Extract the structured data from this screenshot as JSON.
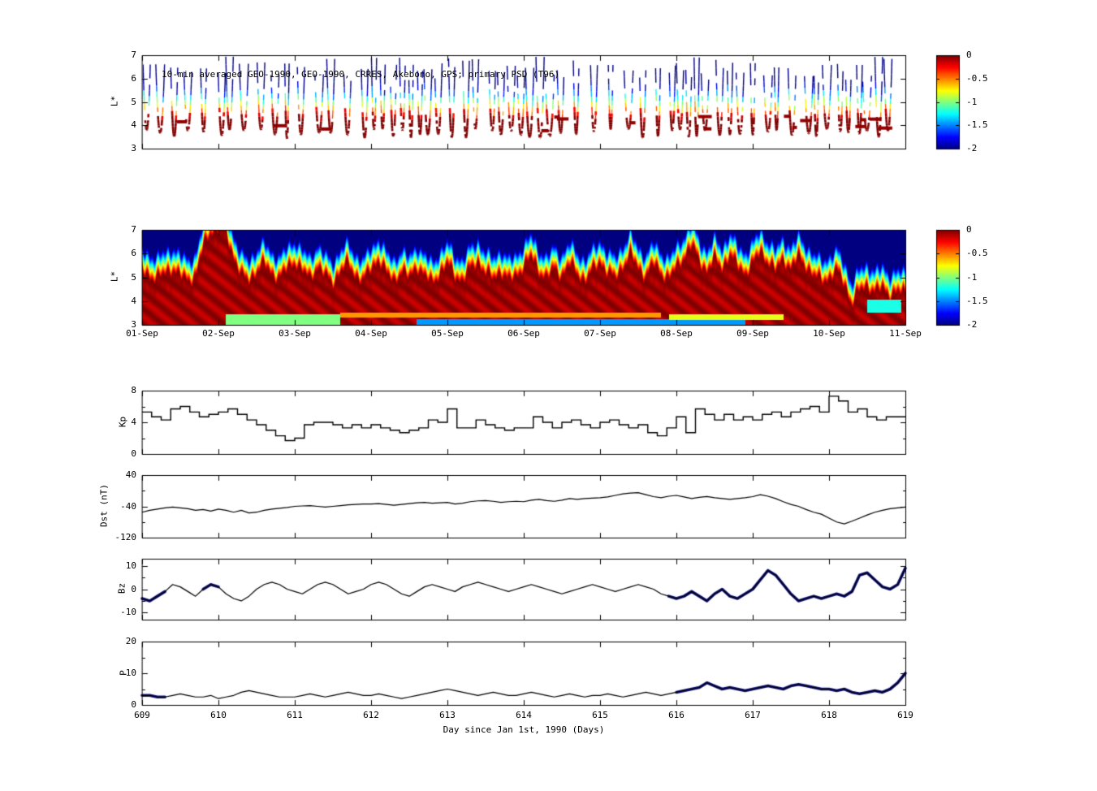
{
  "xaxis": {
    "label": "Day since Jan 1st, 1990 (Days)",
    "lim": [
      609,
      619
    ],
    "tick_labels": [
      "609",
      "610",
      "611",
      "612",
      "613",
      "614",
      "615",
      "616",
      "617",
      "618",
      "619"
    ]
  },
  "date_axis": {
    "tick_labels": [
      "01-Sep",
      "02-Sep",
      "03-Sep",
      "04-Sep",
      "05-Sep",
      "06-Sep",
      "07-Sep",
      "08-Sep",
      "09-Sep",
      "10-Sep",
      "11-Sep"
    ]
  },
  "colorbar": {
    "range": [
      -2,
      0
    ],
    "tick_values": [
      0,
      -0.5,
      -1,
      -1.5,
      -2
    ],
    "tick_labels": [
      "0",
      "-0.5",
      "-1",
      "-1.5",
      "-2"
    ]
  },
  "chart_data": [
    {
      "id": "psd-scatter",
      "type": "scatter",
      "title": "10-min averaged GEO-1990, GEO-1990, CRRES, Akebono, GPS; primary PSD (T96)",
      "ylabel": "L*",
      "ylim": [
        3,
        7
      ],
      "ytick_values": [
        7,
        6,
        5,
        4,
        3
      ],
      "ytick_labels": [
        "7",
        "6",
        "5",
        "4",
        "3"
      ],
      "value_range": [
        -2,
        0
      ],
      "orbit": {
        "period_days": 0.16,
        "span_days": 0.08,
        "lmin": 3.4,
        "lmax": 7.0
      },
      "seed": 42
    },
    {
      "id": "psd-map",
      "type": "heatmap",
      "ylabel": "L*",
      "ylim": [
        3,
        7
      ],
      "ytick_values": [
        7,
        6,
        5,
        4,
        3
      ],
      "ytick_labels": [
        "7",
        "6",
        "5",
        "4",
        "3"
      ],
      "value_range": [
        -2,
        0
      ],
      "x_start": 609,
      "x_step": 0.1,
      "red_top": [
        5.2,
        5.0,
        4.9,
        5.1,
        5.3,
        5.0,
        4.8,
        5.0,
        6.2,
        6.9,
        7.0,
        6.8,
        5.8,
        5.0,
        4.8,
        5.2,
        5.5,
        5.1,
        4.9,
        5.3,
        5.6,
        5.2,
        4.9,
        5.4,
        5.0,
        4.7,
        5.2,
        5.5,
        5.0,
        4.8,
        5.3,
        5.7,
        5.1,
        4.8,
        5.2,
        4.9,
        5.4,
        5.0,
        4.7,
        5.1,
        5.5,
        5.0,
        4.8,
        5.3,
        5.6,
        5.1,
        4.9,
        5.2,
        4.8,
        5.0,
        5.4,
        5.8,
        5.2,
        4.9,
        5.3,
        5.0,
        5.5,
        5.1,
        4.8,
        5.2,
        5.6,
        5.1,
        4.9,
        5.4,
        5.9,
        5.3,
        5.0,
        5.5,
        5.1,
        4.9,
        5.3,
        5.8,
        6.3,
        5.6,
        5.2,
        5.7,
        5.3,
        5.9,
        5.4,
        5.1,
        5.5,
        6.0,
        5.6,
        5.2,
        5.7,
        5.3,
        5.8,
        5.4,
        5.0,
        4.8,
        4.9,
        5.2,
        4.7,
        3.8,
        4.4,
        4.6,
        4.3,
        4.5,
        4.2,
        4.3
      ],
      "strips": [
        {
          "t0": 610.1,
          "t1": 611.6,
          "l0": 3.0,
          "l1": 3.45,
          "v": -1.0
        },
        {
          "t0": 611.6,
          "t1": 615.8,
          "l0": 3.3,
          "l1": 3.5,
          "v": -0.55
        },
        {
          "t0": 612.6,
          "t1": 616.9,
          "l0": 3.0,
          "l1": 3.25,
          "v": -1.45
        },
        {
          "t0": 615.9,
          "t1": 617.4,
          "l0": 3.2,
          "l1": 3.45,
          "v": -0.8
        },
        {
          "t0": 618.5,
          "t1": 618.95,
          "l0": 3.5,
          "l1": 4.05,
          "v": -1.2
        }
      ]
    },
    {
      "id": "kp",
      "type": "line-step",
      "ylabel": "Kp",
      "ylim": [
        0,
        8
      ],
      "ytick_values": [
        8,
        4,
        0
      ],
      "ytick_minor": [
        2,
        6
      ],
      "ytick_labels": [
        "8",
        "4",
        "0"
      ],
      "x_start": 609,
      "x_step": 0.125,
      "values": [
        5.3,
        4.7,
        4.3,
        5.7,
        6.0,
        5.3,
        4.7,
        5.0,
        5.3,
        5.7,
        5.0,
        4.3,
        3.7,
        3.0,
        2.3,
        1.7,
        2.0,
        3.7,
        4.0,
        4.0,
        3.7,
        3.3,
        3.7,
        3.3,
        3.7,
        3.3,
        3.0,
        2.7,
        3.0,
        3.3,
        4.3,
        4.0,
        5.7,
        3.3,
        3.3,
        4.3,
        3.7,
        3.3,
        3.0,
        3.3,
        3.3,
        4.7,
        4.0,
        3.3,
        4.0,
        4.3,
        3.7,
        3.3,
        4.0,
        4.3,
        3.7,
        3.3,
        3.7,
        2.7,
        2.3,
        3.3,
        4.7,
        2.7,
        5.7,
        5.0,
        4.3,
        5.0,
        4.3,
        4.7,
        4.3,
        5.0,
        5.3,
        4.7,
        5.3,
        5.7,
        6.0,
        5.3,
        7.3,
        6.7,
        5.3,
        5.7,
        4.7,
        4.3,
        4.7,
        4.7
      ]
    },
    {
      "id": "dst",
      "type": "line",
      "ylabel": "Dst (nT)",
      "ylim": [
        -120,
        40
      ],
      "ytick_values": [
        40,
        -40,
        -120
      ],
      "ytick_minor": [
        0,
        -80
      ],
      "ytick_labels": [
        "40",
        "-40",
        "-120"
      ],
      "x_start": 609,
      "x_step": 0.1,
      "values": [
        -55,
        -50,
        -47,
        -44,
        -42,
        -44,
        -46,
        -50,
        -48,
        -52,
        -47,
        -50,
        -55,
        -50,
        -57,
        -55,
        -50,
        -47,
        -45,
        -43,
        -40,
        -39,
        -38,
        -40,
        -42,
        -40,
        -38,
        -36,
        -35,
        -34,
        -34,
        -33,
        -35,
        -37,
        -35,
        -33,
        -31,
        -30,
        -32,
        -31,
        -30,
        -34,
        -32,
        -28,
        -26,
        -25,
        -27,
        -30,
        -28,
        -27,
        -28,
        -24,
        -22,
        -25,
        -27,
        -24,
        -20,
        -22,
        -20,
        -19,
        -18,
        -16,
        -12,
        -8,
        -6,
        -5,
        -10,
        -15,
        -18,
        -14,
        -12,
        -16,
        -20,
        -17,
        -15,
        -18,
        -20,
        -22,
        -20,
        -18,
        -15,
        -10,
        -14,
        -20,
        -28,
        -35,
        -40,
        -48,
        -55,
        -60,
        -70,
        -80,
        -85,
        -78,
        -70,
        -62,
        -55,
        -50,
        -46,
        -44,
        -42
      ]
    },
    {
      "id": "bz",
      "type": "line",
      "ylabel": "Bz",
      "ylim": [
        -13,
        13
      ],
      "ytick_values": [
        10,
        0,
        -10
      ],
      "ytick_minor": [
        5,
        -5
      ],
      "ytick_labels": [
        "10",
        "0",
        "-10"
      ],
      "x_start": 609,
      "x_step": 0.1,
      "highlight_color": "#10127e",
      "highlight_ranges": [
        [
          609.0,
          609.35
        ],
        [
          609.8,
          610.0
        ],
        [
          615.9,
          619.0
        ]
      ],
      "values": [
        -4,
        -5,
        -3,
        -1,
        2,
        1,
        -1,
        -3,
        0,
        2,
        1,
        -2,
        -4,
        -5,
        -3,
        0,
        2,
        3,
        2,
        0,
        -1,
        -2,
        0,
        2,
        3,
        2,
        0,
        -2,
        -1,
        0,
        2,
        3,
        2,
        0,
        -2,
        -3,
        -1,
        1,
        2,
        1,
        0,
        -1,
        1,
        2,
        3,
        2,
        1,
        0,
        -1,
        0,
        1,
        2,
        1,
        0,
        -1,
        -2,
        -1,
        0,
        1,
        2,
        1,
        0,
        -1,
        0,
        1,
        2,
        1,
        0,
        -2,
        -3,
        -4,
        -3,
        -1,
        -3,
        -5,
        -2,
        0,
        -3,
        -4,
        -2,
        0,
        4,
        8,
        6,
        2,
        -2,
        -5,
        -4,
        -3,
        -4,
        -3,
        -2,
        -3,
        -1,
        6,
        7,
        4,
        1,
        0,
        2,
        9
      ]
    },
    {
      "id": "p",
      "type": "line",
      "ylabel": "P",
      "ylim": [
        0,
        20
      ],
      "ytick_values": [
        20,
        10,
        0
      ],
      "ytick_minor": [
        5,
        15
      ],
      "ytick_labels": [
        "20",
        "10",
        "0"
      ],
      "x_start": 609,
      "x_step": 0.1,
      "highlight_color": "#10127e",
      "highlight_ranges": [
        [
          609.0,
          609.3
        ],
        [
          615.95,
          619.0
        ]
      ],
      "values": [
        3,
        3,
        2.5,
        2.5,
        3,
        3.5,
        3,
        2.5,
        2.5,
        3,
        2,
        2.5,
        3,
        4,
        4.5,
        4,
        3.5,
        3,
        2.5,
        2.5,
        2.5,
        3,
        3.5,
        3,
        2.5,
        3,
        3.5,
        4,
        3.5,
        3,
        3,
        3.5,
        3,
        2.5,
        2,
        2.5,
        3,
        3.5,
        4,
        4.5,
        5,
        4.5,
        4,
        3.5,
        3,
        3.5,
        4,
        3.5,
        3,
        3,
        3.5,
        4,
        3.5,
        3,
        2.5,
        3,
        3.5,
        3,
        2.5,
        3,
        3,
        3.5,
        3,
        2.5,
        3,
        3.5,
        4,
        3.5,
        3,
        3.5,
        4,
        4.5,
        5,
        5.5,
        7,
        6,
        5,
        5.5,
        5,
        4.5,
        5,
        5.5,
        6,
        5.5,
        5,
        6,
        6.5,
        6,
        5.5,
        5,
        5,
        4.5,
        5,
        4,
        3.5,
        4,
        4.5,
        4,
        5,
        7,
        10
      ]
    }
  ]
}
